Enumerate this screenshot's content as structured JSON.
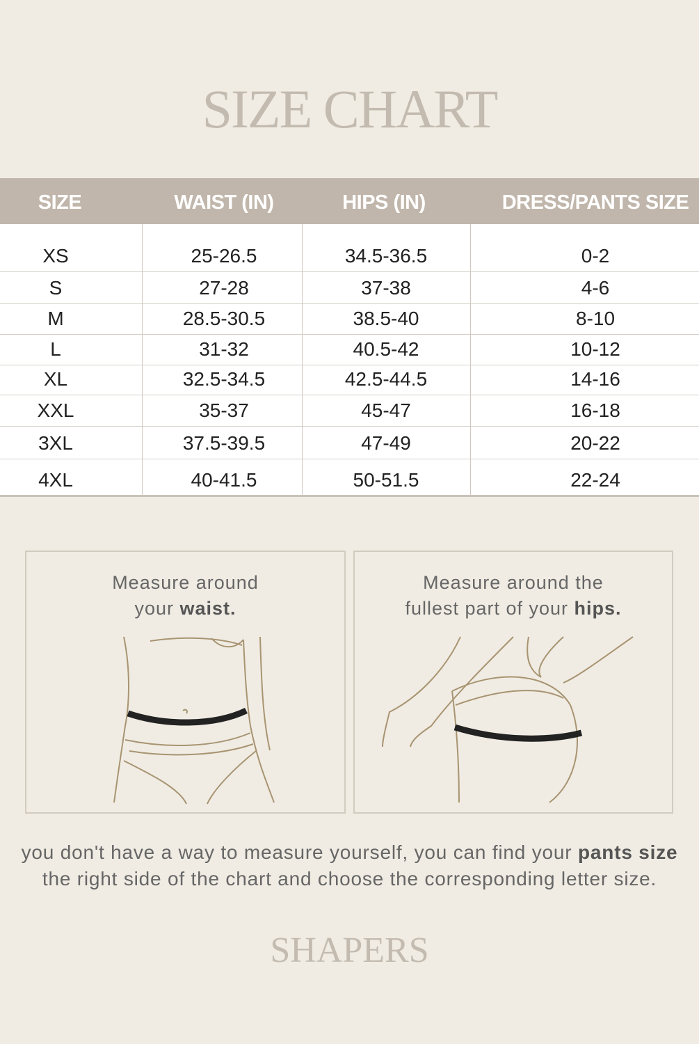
{
  "title": "SIZE CHART",
  "table": {
    "headers": [
      "SIZE",
      "WAIST (IN)",
      "HIPS (IN)",
      "DRESS/PANTS SIZE"
    ],
    "rows": [
      [
        "XS",
        "25-26.5",
        "34.5-36.5",
        "0-2"
      ],
      [
        "S",
        "27-28",
        "37-38",
        "4-6"
      ],
      [
        "M",
        "28.5-30.5",
        "38.5-40",
        "8-10"
      ],
      [
        "L",
        "31-32",
        "40.5-42",
        "10-12"
      ],
      [
        "XL",
        "32.5-34.5",
        "42.5-44.5",
        "14-16"
      ],
      [
        "XXL",
        "35-37",
        "45-47",
        "16-18"
      ],
      [
        "3XL",
        "37.5-39.5",
        "47-49",
        "20-22"
      ],
      [
        "4XL",
        "40-41.5",
        "50-51.5",
        "22-24"
      ]
    ]
  },
  "waist_box": {
    "line1": "Measure around",
    "line2_prefix": "your ",
    "line2_bold": "waist."
  },
  "hips_box": {
    "line1": "Measure around the",
    "line2_prefix": "fullest part of your ",
    "line2_bold": "hips."
  },
  "note": {
    "prefix": "you don't have a way to measure yourself, you can find your ",
    "bold": "pants size",
    "line2": "the right side of the chart and choose the corresponding letter size."
  },
  "brand": "SHAPERS",
  "colors": {
    "background": "#f0ece3",
    "header": "#c1b6ab",
    "title": "#c4bbb0",
    "line_art": "#a89472"
  }
}
